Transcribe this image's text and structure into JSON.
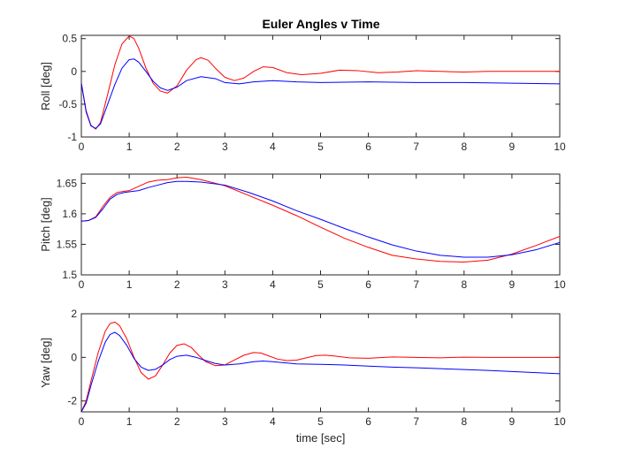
{
  "figure": {
    "title": "Euler Angles v Time"
  },
  "colors": {
    "series_a": "#ff0000",
    "series_b": "#0000ff",
    "axes": "#262626"
  },
  "chart_data": [
    {
      "type": "line",
      "title": "Euler Angles v Time",
      "ylabel": "Roll [deg]",
      "xlabel": "",
      "xlim": [
        0,
        10
      ],
      "ylim": [
        -1,
        0.55
      ],
      "xticks": [
        0,
        1,
        2,
        3,
        4,
        5,
        6,
        7,
        8,
        9,
        10
      ],
      "yticks": [
        -1,
        -0.5,
        0,
        0.5
      ],
      "yticklabels": [
        "-1",
        "-0.5",
        "0",
        "0.5"
      ],
      "grid": false,
      "series": [
        {
          "color": "#ff0000",
          "x": [
            0,
            0.1,
            0.2,
            0.3,
            0.4,
            0.55,
            0.7,
            0.85,
            1.0,
            1.1,
            1.2,
            1.35,
            1.5,
            1.65,
            1.8,
            2.0,
            2.2,
            2.4,
            2.5,
            2.65,
            2.8,
            3.0,
            3.2,
            3.4,
            3.6,
            3.8,
            4.0,
            4.3,
            4.6,
            5.0,
            5.4,
            5.8,
            6.2,
            6.6,
            7.0,
            7.5,
            8.0,
            8.5,
            9.0,
            9.5,
            10.0
          ],
          "y": [
            -0.18,
            -0.6,
            -0.82,
            -0.88,
            -0.78,
            -0.35,
            0.1,
            0.42,
            0.54,
            0.5,
            0.35,
            0.05,
            -0.18,
            -0.3,
            -0.33,
            -0.22,
            0.02,
            0.18,
            0.21,
            0.17,
            0.05,
            -0.09,
            -0.14,
            -0.1,
            0.0,
            0.07,
            0.06,
            -0.02,
            -0.05,
            -0.03,
            0.02,
            0.01,
            -0.02,
            -0.01,
            0.01,
            0.0,
            -0.01,
            0.0,
            0.0,
            0.0,
            0.0
          ]
        },
        {
          "color": "#0000ff",
          "x": [
            0,
            0.1,
            0.2,
            0.3,
            0.4,
            0.55,
            0.7,
            0.85,
            1.0,
            1.1,
            1.2,
            1.35,
            1.5,
            1.65,
            1.8,
            2.0,
            2.2,
            2.5,
            2.8,
            3.0,
            3.3,
            3.6,
            4.0,
            4.5,
            5.0,
            6.0,
            7.0,
            8.0,
            9.0,
            10.0
          ],
          "y": [
            -0.18,
            -0.62,
            -0.83,
            -0.87,
            -0.8,
            -0.5,
            -0.2,
            0.05,
            0.18,
            0.19,
            0.14,
            0.0,
            -0.15,
            -0.25,
            -0.29,
            -0.24,
            -0.14,
            -0.08,
            -0.11,
            -0.17,
            -0.19,
            -0.16,
            -0.14,
            -0.16,
            -0.17,
            -0.16,
            -0.17,
            -0.17,
            -0.18,
            -0.19
          ]
        }
      ]
    },
    {
      "type": "line",
      "title": "",
      "ylabel": "Pitch [deg]",
      "xlabel": "",
      "xlim": [
        0,
        10
      ],
      "ylim": [
        1.5,
        1.665
      ],
      "xticks": [
        0,
        1,
        2,
        3,
        4,
        5,
        6,
        7,
        8,
        9,
        10
      ],
      "yticks": [
        1.5,
        1.55,
        1.6,
        1.65
      ],
      "yticklabels": [
        "1.5",
        "1.55",
        "1.6",
        "1.65"
      ],
      "grid": false,
      "series": [
        {
          "color": "#ff0000",
          "x": [
            0,
            0.15,
            0.3,
            0.45,
            0.6,
            0.75,
            0.9,
            1.0,
            1.2,
            1.4,
            1.6,
            1.8,
            2.0,
            2.2,
            2.5,
            3.0,
            3.5,
            4.0,
            4.5,
            5.0,
            5.5,
            6.0,
            6.5,
            7.0,
            7.5,
            8.0,
            8.5,
            9.0,
            9.5,
            10.0
          ],
          "y": [
            1.588,
            1.589,
            1.595,
            1.612,
            1.627,
            1.635,
            1.637,
            1.638,
            1.645,
            1.652,
            1.655,
            1.656,
            1.659,
            1.66,
            1.656,
            1.646,
            1.63,
            1.614,
            1.597,
            1.578,
            1.56,
            1.545,
            1.532,
            1.526,
            1.522,
            1.521,
            1.524,
            1.534,
            1.548,
            1.563
          ]
        },
        {
          "color": "#0000ff",
          "x": [
            0,
            0.15,
            0.3,
            0.45,
            0.6,
            0.75,
            0.9,
            1.0,
            1.2,
            1.4,
            1.6,
            1.8,
            2.0,
            2.2,
            2.5,
            3.0,
            3.5,
            4.0,
            4.5,
            5.0,
            5.5,
            6.0,
            6.5,
            7.0,
            7.5,
            8.0,
            8.5,
            9.0,
            9.5,
            10.0
          ],
          "y": [
            1.588,
            1.589,
            1.594,
            1.608,
            1.624,
            1.632,
            1.635,
            1.636,
            1.638,
            1.643,
            1.647,
            1.651,
            1.653,
            1.653,
            1.652,
            1.647,
            1.635,
            1.621,
            1.605,
            1.591,
            1.576,
            1.562,
            1.549,
            1.539,
            1.532,
            1.529,
            1.529,
            1.533,
            1.541,
            1.553
          ]
        }
      ]
    },
    {
      "type": "line",
      "title": "",
      "ylabel": "Yaw [deg]",
      "xlabel": "time [sec]",
      "xlim": [
        0,
        10
      ],
      "ylim": [
        -2.5,
        2
      ],
      "xticks": [
        0,
        1,
        2,
        3,
        4,
        5,
        6,
        7,
        8,
        9,
        10
      ],
      "yticks": [
        -2,
        0,
        2
      ],
      "yticklabels": [
        "-2",
        "0",
        "2"
      ],
      "grid": false,
      "series": [
        {
          "color": "#ff0000",
          "x": [
            0,
            0.1,
            0.2,
            0.35,
            0.5,
            0.6,
            0.7,
            0.8,
            0.95,
            1.1,
            1.25,
            1.4,
            1.55,
            1.7,
            1.85,
            2.0,
            2.15,
            2.3,
            2.45,
            2.6,
            2.8,
            3.0,
            3.2,
            3.4,
            3.6,
            3.75,
            3.9,
            4.1,
            4.3,
            4.5,
            4.7,
            4.9,
            5.1,
            5.3,
            5.6,
            6.0,
            6.5,
            7.0,
            7.5,
            8.0,
            8.5,
            9.0,
            9.5,
            10.0
          ],
          "y": [
            -2.5,
            -2.0,
            -1.1,
            0.2,
            1.2,
            1.55,
            1.62,
            1.45,
            0.85,
            0.0,
            -0.7,
            -1.0,
            -0.85,
            -0.35,
            0.2,
            0.55,
            0.62,
            0.45,
            0.1,
            -0.2,
            -0.38,
            -0.35,
            -0.12,
            0.1,
            0.22,
            0.2,
            0.08,
            -0.08,
            -0.15,
            -0.13,
            -0.02,
            0.08,
            0.1,
            0.06,
            -0.02,
            -0.04,
            0.02,
            0.0,
            -0.02,
            0.01,
            0.0,
            0.0,
            0.0,
            0.0
          ]
        },
        {
          "color": "#0000ff",
          "x": [
            0,
            0.1,
            0.2,
            0.35,
            0.5,
            0.6,
            0.7,
            0.8,
            0.95,
            1.1,
            1.25,
            1.4,
            1.55,
            1.7,
            1.85,
            2.0,
            2.2,
            2.4,
            2.6,
            2.8,
            3.0,
            3.3,
            3.6,
            3.8,
            4.0,
            4.5,
            5.0,
            5.5,
            6.0,
            6.5,
            7.0,
            7.5,
            8.0,
            8.5,
            9.0,
            9.5,
            10.0
          ],
          "y": [
            -2.5,
            -2.1,
            -1.3,
            -0.2,
            0.7,
            1.05,
            1.15,
            1.0,
            0.55,
            -0.05,
            -0.45,
            -0.6,
            -0.55,
            -0.35,
            -0.1,
            0.05,
            0.1,
            0.0,
            -0.15,
            -0.28,
            -0.35,
            -0.3,
            -0.2,
            -0.17,
            -0.2,
            -0.3,
            -0.32,
            -0.35,
            -0.4,
            -0.45,
            -0.48,
            -0.52,
            -0.56,
            -0.6,
            -0.65,
            -0.7,
            -0.75
          ]
        }
      ]
    }
  ]
}
